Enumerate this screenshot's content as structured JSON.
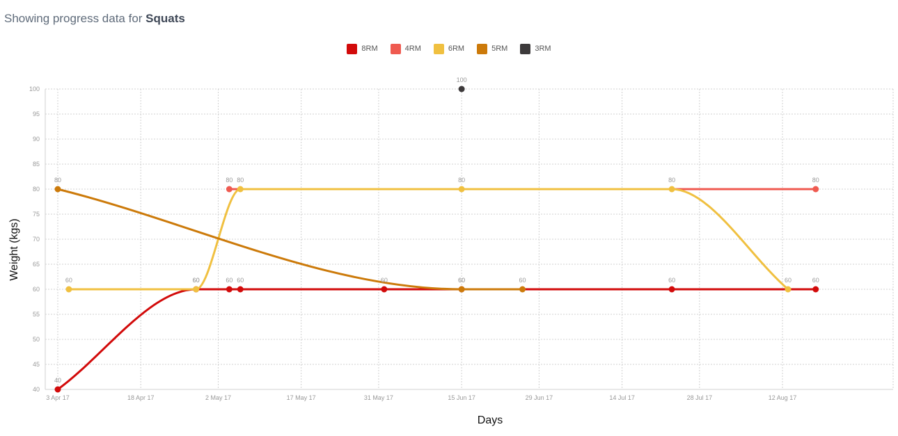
{
  "header": {
    "prefix": "Showing progress data for ",
    "exercise": "Squats"
  },
  "chart_data": {
    "type": "line",
    "xlabel": "Days",
    "ylabel": "Weight (kgs)",
    "ylim": [
      40,
      100
    ],
    "y_ticks": [
      40,
      45,
      50,
      55,
      60,
      65,
      70,
      75,
      80,
      85,
      90,
      95,
      100
    ],
    "x_range": [
      "2017-04-03",
      "2017-09-01"
    ],
    "x_ticks": [
      {
        "date": "2017-04-03",
        "label": "3 Apr 17"
      },
      {
        "date": "2017-04-18",
        "label": "18 Apr 17"
      },
      {
        "date": "2017-05-02",
        "label": "2 May 17"
      },
      {
        "date": "2017-05-17",
        "label": "17 May 17"
      },
      {
        "date": "2017-05-31",
        "label": "31 May 17"
      },
      {
        "date": "2017-06-15",
        "label": "15 Jun 17"
      },
      {
        "date": "2017-06-29",
        "label": "29 Jun 17"
      },
      {
        "date": "2017-07-14",
        "label": "14 Jul 17"
      },
      {
        "date": "2017-07-28",
        "label": "28 Jul 17"
      },
      {
        "date": "2017-08-12",
        "label": "12 Aug 17"
      }
    ],
    "grid": true,
    "legend_position": "top-center",
    "series": [
      {
        "name": "8RM",
        "color": "#d20a0a",
        "points": [
          [
            "2017-04-03",
            40
          ],
          [
            "2017-04-28",
            60
          ],
          [
            "2017-05-04",
            60
          ],
          [
            "2017-05-06",
            60
          ],
          [
            "2017-06-01",
            60
          ],
          [
            "2017-06-15",
            60
          ],
          [
            "2017-07-23",
            60
          ],
          [
            "2017-08-18",
            60
          ]
        ]
      },
      {
        "name": "4RM",
        "color": "#ef5a50",
        "points": [
          [
            "2017-05-04",
            80
          ],
          [
            "2017-08-18",
            80
          ]
        ]
      },
      {
        "name": "6RM",
        "color": "#f0c040",
        "points": [
          [
            "2017-04-05",
            60
          ],
          [
            "2017-04-28",
            60
          ],
          [
            "2017-05-06",
            80
          ],
          [
            "2017-06-15",
            80
          ],
          [
            "2017-07-23",
            80
          ],
          [
            "2017-08-13",
            60
          ]
        ]
      },
      {
        "name": "5RM",
        "color": "#cc7a0a",
        "points": [
          [
            "2017-04-03",
            80
          ],
          [
            "2017-06-15",
            60
          ],
          [
            "2017-06-26",
            60
          ]
        ]
      },
      {
        "name": "3RM",
        "color": "#3d3a3b",
        "points": [
          [
            "2017-06-15",
            100
          ]
        ]
      }
    ]
  }
}
